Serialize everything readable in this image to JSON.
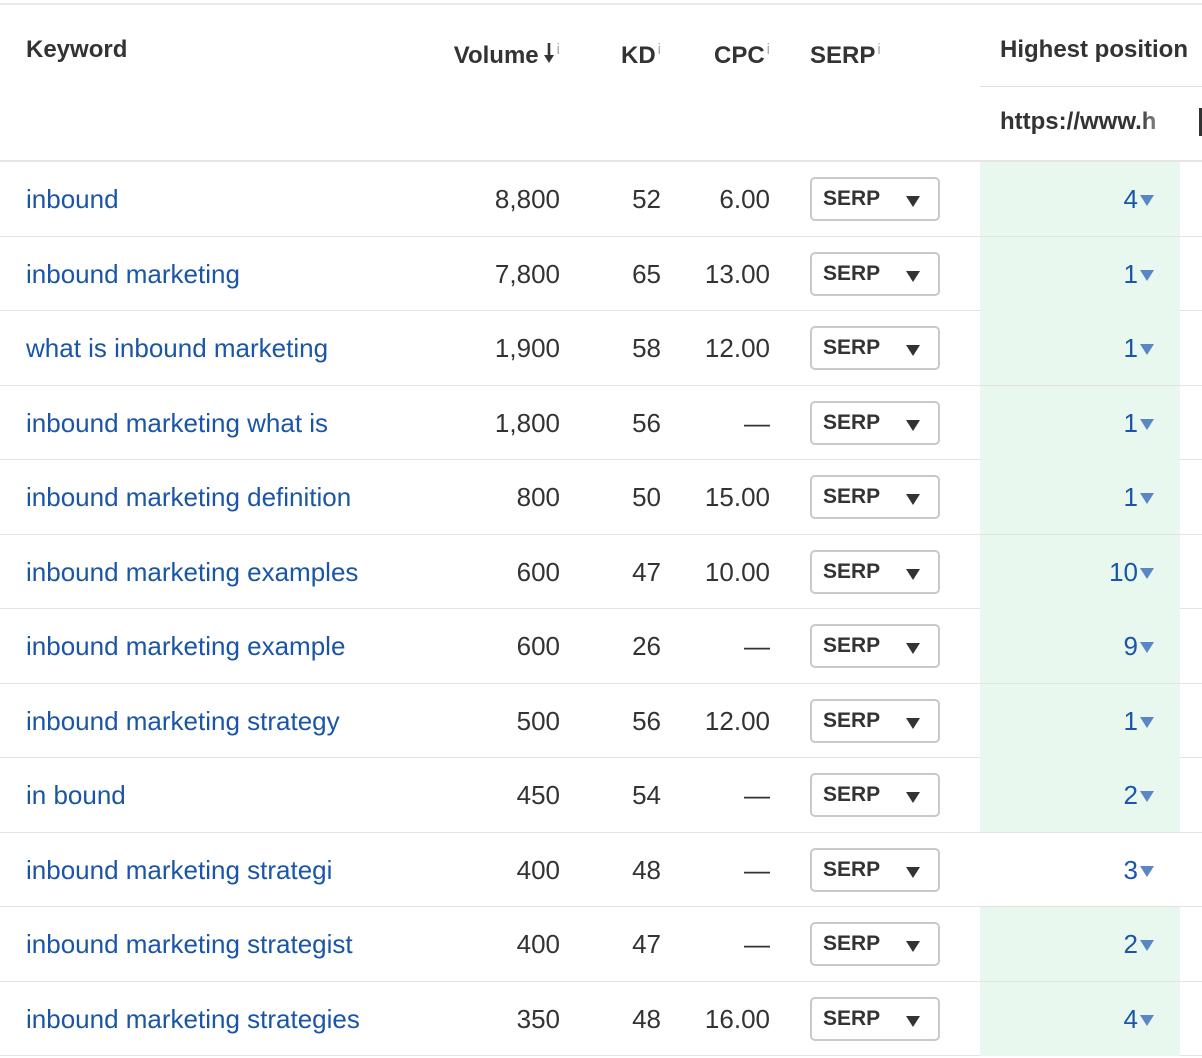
{
  "colors": {
    "link": "#1a55a6",
    "text": "#333333",
    "highlight": "#e8f8ee",
    "border": "#c9c9c9"
  },
  "headers": {
    "keyword": "Keyword",
    "volume": "Volume",
    "kd": "KD",
    "cpc": "CPC",
    "serp": "SERP",
    "highest_position": "Highest position",
    "info_mark": "i",
    "url": "https://www.h"
  },
  "serp_button_label": "SERP",
  "rows": [
    {
      "keyword": "inbound",
      "volume": "8,800",
      "kd": "52",
      "cpc": "6.00",
      "position": "4",
      "highlight": true
    },
    {
      "keyword": "inbound marketing",
      "volume": "7,800",
      "kd": "65",
      "cpc": "13.00",
      "position": "1",
      "highlight": true
    },
    {
      "keyword": "what is inbound marketing",
      "volume": "1,900",
      "kd": "58",
      "cpc": "12.00",
      "position": "1",
      "highlight": true
    },
    {
      "keyword": "inbound marketing what is",
      "volume": "1,800",
      "kd": "56",
      "cpc": "—",
      "position": "1",
      "highlight": true
    },
    {
      "keyword": "inbound marketing definition",
      "volume": "800",
      "kd": "50",
      "cpc": "15.00",
      "position": "1",
      "highlight": true
    },
    {
      "keyword": "inbound marketing examples",
      "volume": "600",
      "kd": "47",
      "cpc": "10.00",
      "position": "10",
      "highlight": true
    },
    {
      "keyword": "inbound marketing example",
      "volume": "600",
      "kd": "26",
      "cpc": "—",
      "position": "9",
      "highlight": true
    },
    {
      "keyword": "inbound marketing strategy",
      "volume": "500",
      "kd": "56",
      "cpc": "12.00",
      "position": "1",
      "highlight": true
    },
    {
      "keyword": "in bound",
      "volume": "450",
      "kd": "54",
      "cpc": "—",
      "position": "2",
      "highlight": true
    },
    {
      "keyword": "inbound marketing strategi",
      "volume": "400",
      "kd": "48",
      "cpc": "—",
      "position": "3",
      "highlight": false
    },
    {
      "keyword": "inbound marketing strategist",
      "volume": "400",
      "kd": "47",
      "cpc": "—",
      "position": "2",
      "highlight": true
    },
    {
      "keyword": "inbound marketing strategies",
      "volume": "350",
      "kd": "48",
      "cpc": "16.00",
      "position": "4",
      "highlight": true
    }
  ]
}
